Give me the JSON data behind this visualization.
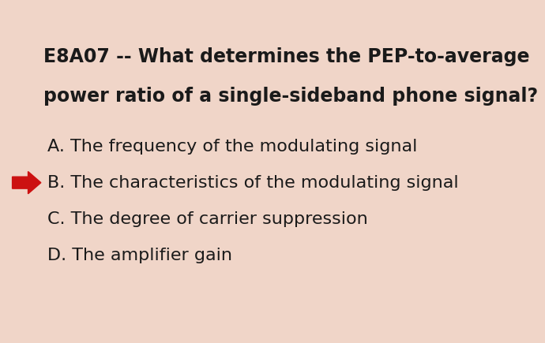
{
  "background_color": "#f0d5c8",
  "title_line1": "E8A07 -- What determines the PEP-to-average",
  "title_line2": "power ratio of a single-sideband phone signal?",
  "options": [
    "A. The frequency of the modulating signal",
    "B. The characteristics of the modulating signal",
    "C. The degree of carrier suppression",
    "D. The amplifier gain"
  ],
  "correct_index": 1,
  "arrow_color": "#cc1111",
  "text_color": "#1a1a1a",
  "title_fontsize": 17,
  "option_fontsize": 16,
  "title_font_weight": "bold",
  "option_font_weight": "normal"
}
